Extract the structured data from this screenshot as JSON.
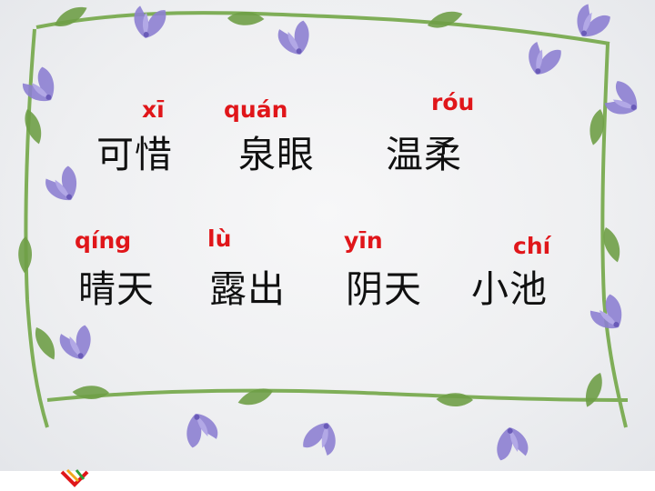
{
  "colors": {
    "pinyin": "#e0161a",
    "hanzi": "#101010",
    "background": "#eeeff1",
    "flower": "#8d7fd1",
    "stem": "#7fae58"
  },
  "icons": [
    "bellflower-icon",
    "leaf-icon",
    "vine-frame",
    "logo-icon"
  ],
  "row1": [
    {
      "pinyin": "xī",
      "word": "可惜"
    },
    {
      "pinyin": "quán",
      "word": "泉眼"
    },
    {
      "pinyin": "róu",
      "word": "温柔"
    }
  ],
  "row2": [
    {
      "pinyin": "qíng",
      "word": "晴天"
    },
    {
      "pinyin": "lù",
      "word": "露出"
    },
    {
      "pinyin": "yīn",
      "word": "阴天"
    },
    {
      "pinyin": "chí",
      "word": "小池"
    }
  ]
}
